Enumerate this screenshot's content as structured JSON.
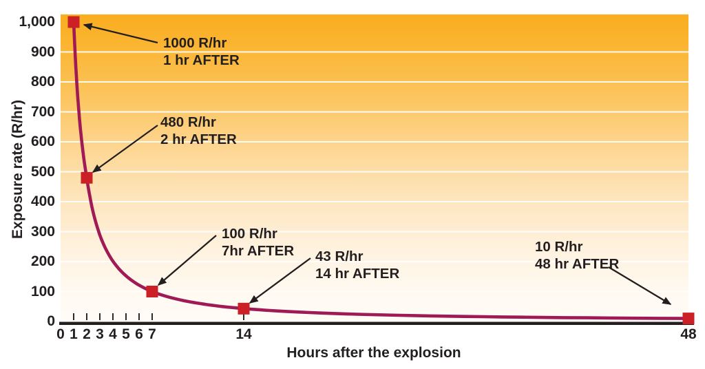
{
  "figure": {
    "background": "#ffffff",
    "text_color": "#231f20"
  },
  "chart_data": {
    "type": "line",
    "title": "",
    "xlabel": "Hours after the explosion",
    "ylabel": "Exposure rate (R/hr)",
    "xlim": [
      0,
      48
    ],
    "ylim": [
      0,
      1000
    ],
    "legend": "none",
    "grid": "horizontal white gridlines every 100 R/hr",
    "curve_color": "#a01b55",
    "marker_color": "#cc2027",
    "marker_shape": "square",
    "axis_line_color": "#231f20",
    "gridline_color": "#ffffff",
    "background_gradient": [
      "#faad1f",
      "#fbb532",
      "#fbbe4b",
      "#fcc868",
      "#fdd287",
      "#fddca4",
      "#fee5bd",
      "#feedd2",
      "#fff4e4",
      "#fff9f0",
      "#fffcf7"
    ],
    "x_ticks": {
      "values": [
        0,
        1,
        2,
        3,
        4,
        5,
        6,
        7,
        14,
        48
      ],
      "labels": [
        "0",
        "1",
        "2",
        "3",
        "4",
        "5",
        "6",
        "7",
        "14",
        "48"
      ]
    },
    "y_ticks": {
      "values": [
        0,
        100,
        200,
        300,
        400,
        500,
        600,
        700,
        800,
        900,
        1000
      ],
      "labels": [
        "0",
        "100",
        "200",
        "300",
        "400",
        "500",
        "600",
        "700",
        "800",
        "900",
        "1,000"
      ]
    },
    "points": [
      {
        "t": 1,
        "rate": 1000
      },
      {
        "t": 2,
        "rate": 480
      },
      {
        "t": 7,
        "rate": 100
      },
      {
        "t": 14,
        "rate": 43
      },
      {
        "t": 48,
        "rate": 10
      }
    ]
  },
  "annotations": [
    {
      "line1": "1000 R/hr",
      "line2": "1 hr AFTER"
    },
    {
      "line1": "480 R/hr",
      "line2": "2 hr AFTER"
    },
    {
      "line1": "100 R/hr",
      "line2": "7hr AFTER"
    },
    {
      "line1": "43 R/hr",
      "line2": "14 hr AFTER"
    },
    {
      "line1": "10 R/hr",
      "line2": "48 hr AFTER"
    }
  ]
}
